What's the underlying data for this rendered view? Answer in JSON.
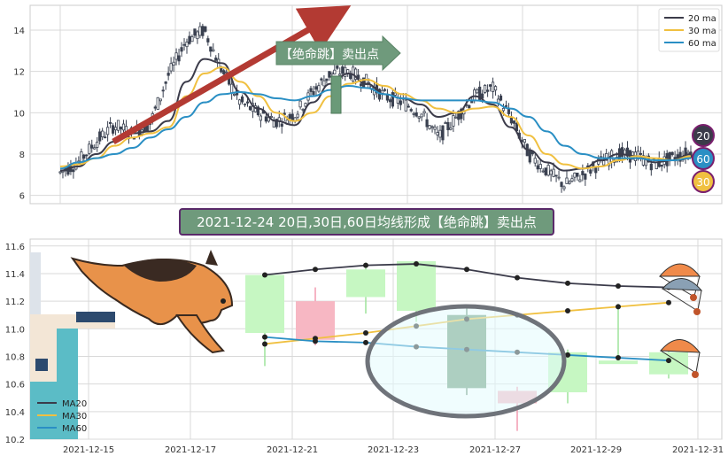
{
  "colors": {
    "ma20": "#3b3b4a",
    "ma30": "#f0c040",
    "ma60": "#2a8fc4",
    "candle": "#3a4150",
    "up": "#c6f7c2",
    "down": "#f7b7c3",
    "arrow": "#b33a33",
    "signal": "#6a9a78",
    "grid": "#d9d9d9"
  },
  "top_panel": {
    "legend": [
      "20 ma",
      "30 ma",
      "60 ma"
    ],
    "signal_label": "【绝命跳】卖出点",
    "badges": [
      "20",
      "60",
      "30"
    ]
  },
  "banner": {
    "text": "2021-12-24 20日,30日,60日均线形成【绝命跳】卖出点"
  },
  "bottom_panel": {
    "legend": [
      "MA20",
      "MA30",
      "MA60"
    ],
    "icons": [
      "dog-icon",
      "diving-board-icon",
      "parachute-icon"
    ]
  },
  "chart_data": [
    {
      "type": "line",
      "title": "",
      "ylim": [
        5.6,
        15.2
      ],
      "yticks": [
        "6",
        "8",
        "10",
        "12",
        "14"
      ],
      "x_note": "daily candlesticks, approx. 2021-01 to 2022-06 (no x tick labels shown)",
      "grid": true,
      "legend_position": "top-right",
      "series": [
        {
          "name": "20 ma",
          "values": [
            7.2,
            7.4,
            8.0,
            8.6,
            9.0,
            9.1,
            9.6,
            11.5,
            12.6,
            12.4,
            11.0,
            10.2,
            9.6,
            9.4,
            10.5,
            11.4,
            11.9,
            11.4,
            10.9,
            10.7,
            10.4,
            9.8,
            10.0,
            10.8,
            10.4,
            9.3,
            8.2,
            7.6,
            7.2,
            7.3,
            7.7,
            8.0,
            7.9,
            7.6,
            7.7,
            8.0
          ]
        },
        {
          "name": "30 ma",
          "values": [
            7.4,
            7.5,
            7.8,
            8.4,
            8.8,
            9.0,
            9.3,
            10.8,
            11.9,
            12.2,
            11.5,
            10.8,
            10.0,
            9.6,
            10.0,
            10.8,
            11.4,
            11.6,
            11.3,
            10.9,
            10.6,
            10.2,
            10.0,
            10.2,
            10.3,
            9.8,
            8.9,
            8.0,
            7.5,
            7.3,
            7.4,
            7.7,
            7.9,
            7.8,
            7.7,
            7.9
          ]
        },
        {
          "name": "60 ma",
          "values": [
            7.3,
            7.6,
            7.8,
            8.0,
            8.3,
            8.8,
            9.2,
            9.8,
            10.5,
            10.9,
            11.0,
            10.9,
            10.7,
            10.6,
            10.8,
            11.1,
            11.3,
            11.2,
            10.9,
            10.7,
            10.6,
            10.6,
            10.6,
            10.6,
            10.5,
            10.2,
            9.8,
            9.1,
            8.4,
            8.0,
            7.8,
            7.8,
            7.8,
            7.7,
            7.7,
            7.8
          ]
        },
        {
          "name": "price",
          "values": [
            7.1,
            7.6,
            8.6,
            9.4,
            9.0,
            9.5,
            11.8,
            13.5,
            14.0,
            12.0,
            10.5,
            10.0,
            9.6,
            9.9,
            11.0,
            11.9,
            12.0,
            11.5,
            10.8,
            10.5,
            10.0,
            8.8,
            9.8,
            10.8,
            11.2,
            9.8,
            8.0,
            7.2,
            6.5,
            7.0,
            7.6,
            8.0,
            7.9,
            7.5,
            7.8,
            8.1
          ]
        }
      ]
    },
    {
      "type": "line",
      "title": "",
      "categories": [
        "2021-12-20",
        "2021-12-21",
        "2021-12-22",
        "2021-12-23",
        "2021-12-24",
        "2021-12-27",
        "2021-12-28",
        "2021-12-29",
        "2021-12-30"
      ],
      "x_tick_labels": [
        "2021-12-15",
        "2021-12-17",
        "2021-12-21",
        "2021-12-23",
        "2021-12-27",
        "2021-12-29",
        "2021-12-31"
      ],
      "ylim": [
        10.2,
        11.65
      ],
      "yticks": [
        "10.2",
        "10.4",
        "10.6",
        "10.8",
        "11.0",
        "11.2",
        "11.4",
        "11.6"
      ],
      "grid": true,
      "legend_position": "bottom-left",
      "candles": [
        {
          "date": "2021-12-20",
          "open": 10.97,
          "close": 11.39,
          "high": 11.39,
          "low": 10.73
        },
        {
          "date": "2021-12-21",
          "open": 11.2,
          "close": 10.92,
          "high": 11.3,
          "low": 10.88
        },
        {
          "date": "2021-12-22",
          "open": 11.23,
          "close": 11.43,
          "high": 11.48,
          "low": 11.11
        },
        {
          "date": "2021-12-23",
          "open": 11.13,
          "close": 11.49,
          "high": 11.49,
          "low": 11.05
        },
        {
          "date": "2021-12-24",
          "open": 11.1,
          "close": 10.57,
          "high": 11.17,
          "low": 10.52
        },
        {
          "date": "2021-12-27",
          "open": 10.55,
          "close": 10.46,
          "high": 10.58,
          "low": 10.26
        },
        {
          "date": "2021-12-28",
          "open": 10.54,
          "close": 10.83,
          "high": 10.85,
          "low": 10.46
        },
        {
          "date": "2021-12-29",
          "open": 10.75,
          "close": 10.77,
          "high": 11.18,
          "low": 10.75
        },
        {
          "date": "2021-12-30",
          "open": 10.67,
          "close": 10.83,
          "high": 10.85,
          "low": 10.64
        }
      ],
      "series": [
        {
          "name": "MA20",
          "values": [
            11.39,
            11.43,
            11.46,
            11.47,
            11.43,
            11.37,
            11.33,
            11.31,
            11.3
          ]
        },
        {
          "name": "MA30",
          "values": [
            10.89,
            10.93,
            10.97,
            11.02,
            11.07,
            11.1,
            11.13,
            11.16,
            11.19
          ]
        },
        {
          "name": "MA60",
          "values": [
            10.94,
            10.91,
            10.9,
            10.87,
            10.85,
            10.83,
            10.81,
            10.79,
            10.77
          ]
        }
      ]
    }
  ]
}
